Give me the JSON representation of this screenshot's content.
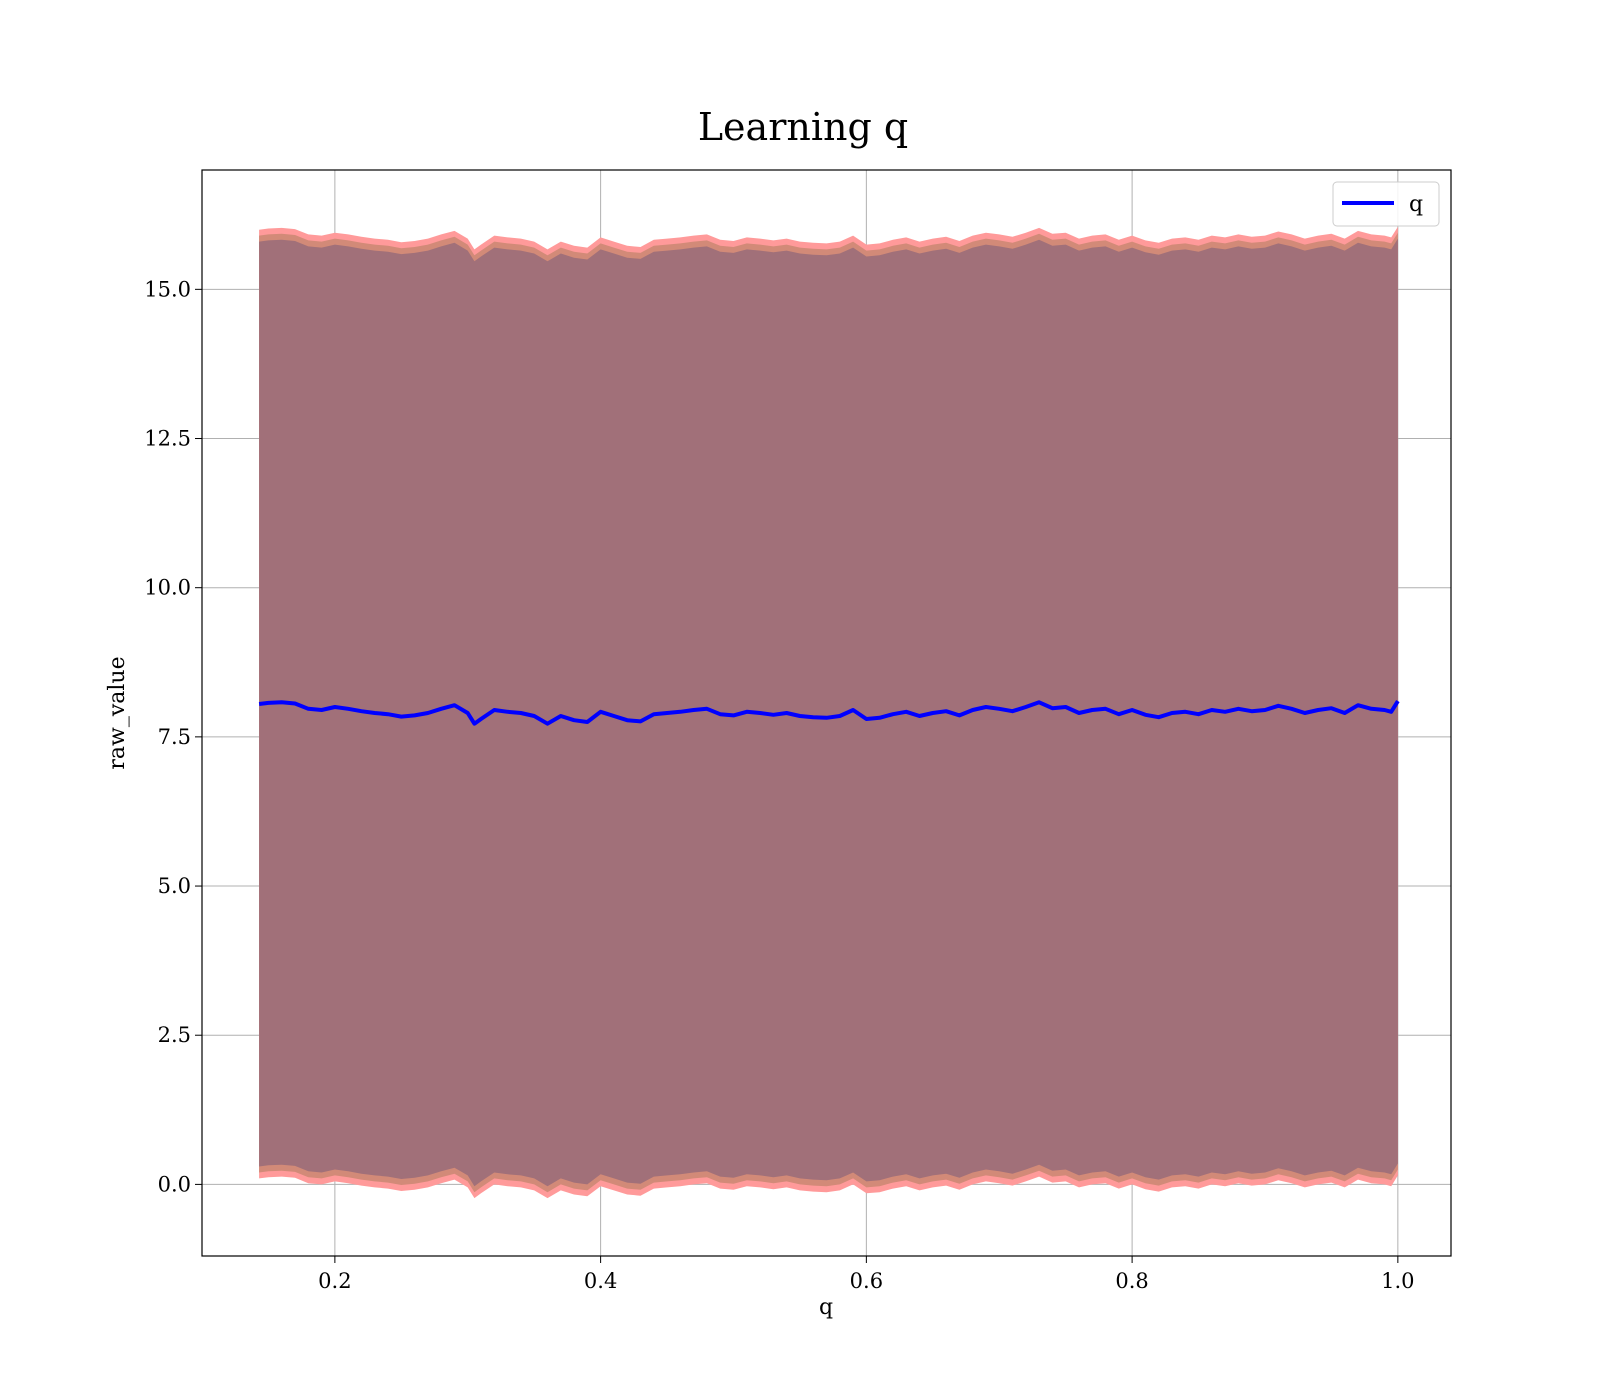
{
  "chart_data": {
    "type": "line",
    "title": "Learning q",
    "xlabel": "q",
    "ylabel": "raw_value",
    "xlim": [
      0.1,
      1.04
    ],
    "ylim": [
      -1.2,
      17.0
    ],
    "xticks": [
      0.2,
      0.4,
      0.6,
      0.8,
      1.0
    ],
    "xtick_labels": [
      "0.2",
      "0.4",
      "0.6",
      "0.8",
      "1.0"
    ],
    "yticks": [
      0.0,
      2.5,
      5.0,
      7.5,
      10.0,
      12.5,
      15.0
    ],
    "ytick_labels": [
      "0.0",
      "2.5",
      "5.0",
      "7.5",
      "10.0",
      "12.5",
      "15.0"
    ],
    "grid": true,
    "legend_placement": "top-right",
    "colors": {
      "line": "#0000ff",
      "band_outer": "#ff9a9a",
      "band_mid": "#d28a78",
      "band_inner": "#a17079",
      "grid": "#b0b0b0"
    },
    "band_offsets": {
      "outer": 7.95,
      "mid": 7.85,
      "inner": 7.75
    },
    "series": [
      {
        "name": "q",
        "x": [
          0.143,
          0.15,
          0.16,
          0.17,
          0.18,
          0.19,
          0.2,
          0.21,
          0.22,
          0.23,
          0.24,
          0.25,
          0.26,
          0.27,
          0.28,
          0.29,
          0.3,
          0.305,
          0.31,
          0.32,
          0.33,
          0.34,
          0.35,
          0.36,
          0.37,
          0.38,
          0.39,
          0.4,
          0.41,
          0.42,
          0.43,
          0.44,
          0.45,
          0.46,
          0.47,
          0.48,
          0.49,
          0.5,
          0.51,
          0.52,
          0.53,
          0.54,
          0.55,
          0.56,
          0.57,
          0.58,
          0.59,
          0.6,
          0.61,
          0.62,
          0.63,
          0.64,
          0.65,
          0.66,
          0.67,
          0.68,
          0.69,
          0.7,
          0.71,
          0.72,
          0.73,
          0.74,
          0.75,
          0.76,
          0.77,
          0.78,
          0.79,
          0.8,
          0.81,
          0.82,
          0.83,
          0.84,
          0.85,
          0.86,
          0.87,
          0.88,
          0.89,
          0.9,
          0.91,
          0.92,
          0.93,
          0.94,
          0.95,
          0.96,
          0.97,
          0.98,
          0.99,
          0.995,
          1.0
        ],
        "y": [
          8.05,
          8.07,
          8.08,
          8.06,
          7.97,
          7.95,
          8.0,
          7.97,
          7.93,
          7.9,
          7.88,
          7.84,
          7.86,
          7.9,
          7.97,
          8.03,
          7.9,
          7.72,
          7.8,
          7.95,
          7.92,
          7.9,
          7.85,
          7.72,
          7.85,
          7.78,
          7.75,
          7.92,
          7.85,
          7.78,
          7.76,
          7.88,
          7.9,
          7.92,
          7.95,
          7.97,
          7.88,
          7.86,
          7.92,
          7.9,
          7.87,
          7.9,
          7.85,
          7.83,
          7.82,
          7.85,
          7.95,
          7.8,
          7.82,
          7.88,
          7.92,
          7.85,
          7.9,
          7.93,
          7.86,
          7.95,
          8.0,
          7.97,
          7.93,
          8.0,
          8.08,
          7.98,
          8.0,
          7.9,
          7.95,
          7.97,
          7.88,
          7.95,
          7.87,
          7.83,
          7.9,
          7.92,
          7.88,
          7.95,
          7.92,
          7.97,
          7.93,
          7.95,
          8.02,
          7.97,
          7.9,
          7.95,
          7.98,
          7.9,
          8.03,
          7.97,
          7.95,
          7.92,
          8.1
        ]
      }
    ]
  }
}
